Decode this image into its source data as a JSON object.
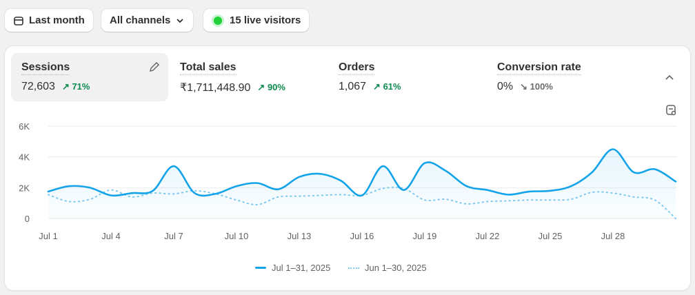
{
  "toolbar": {
    "date_label": "Last month",
    "channel_label": "All channels",
    "live_label": "15 live visitors",
    "live_color": "#22c55e"
  },
  "metrics": [
    {
      "label": "Sessions",
      "value": "72,603",
      "change": "71%",
      "direction": "up"
    },
    {
      "label": "Total sales",
      "value": "₹1,711,448.90",
      "change": "90%",
      "direction": "up"
    },
    {
      "label": "Orders",
      "value": "1,067",
      "change": "61%",
      "direction": "up"
    },
    {
      "label": "Conversion rate",
      "value": "0%",
      "change": "100%",
      "direction": "down"
    }
  ],
  "chart_data": {
    "type": "line",
    "y_ticks": [
      "0",
      "2K",
      "4K",
      "6K"
    ],
    "ylim": [
      0,
      6000
    ],
    "x_ticks": [
      "Jul 1",
      "Jul 4",
      "Jul 7",
      "Jul 10",
      "Jul 13",
      "Jul 16",
      "Jul 19",
      "Jul 22",
      "Jul 25",
      "Jul 28"
    ],
    "grid": true,
    "legend": "bottom",
    "series": [
      {
        "name": "Jul 1–31, 2025",
        "style": "solid",
        "color": "#13a3e8",
        "values": [
          1750,
          2100,
          2000,
          1500,
          1650,
          1800,
          3400,
          1650,
          1600,
          2100,
          2300,
          1900,
          2700,
          2900,
          2450,
          1500,
          3400,
          1850,
          3600,
          3100,
          2100,
          1850,
          1550,
          1750,
          1800,
          2100,
          3000,
          4500,
          3000,
          3200,
          2400
        ]
      },
      {
        "name": "Jun 1–30, 2025",
        "style": "dotted",
        "color": "#7cc8ef",
        "values": [
          1550,
          1100,
          1250,
          1850,
          1400,
          1650,
          1600,
          1800,
          1600,
          1200,
          900,
          1400,
          1450,
          1500,
          1550,
          1500,
          1950,
          1950,
          1200,
          1250,
          950,
          1100,
          1150,
          1200,
          1200,
          1250,
          1700,
          1650,
          1400,
          1200,
          0
        ]
      }
    ]
  }
}
